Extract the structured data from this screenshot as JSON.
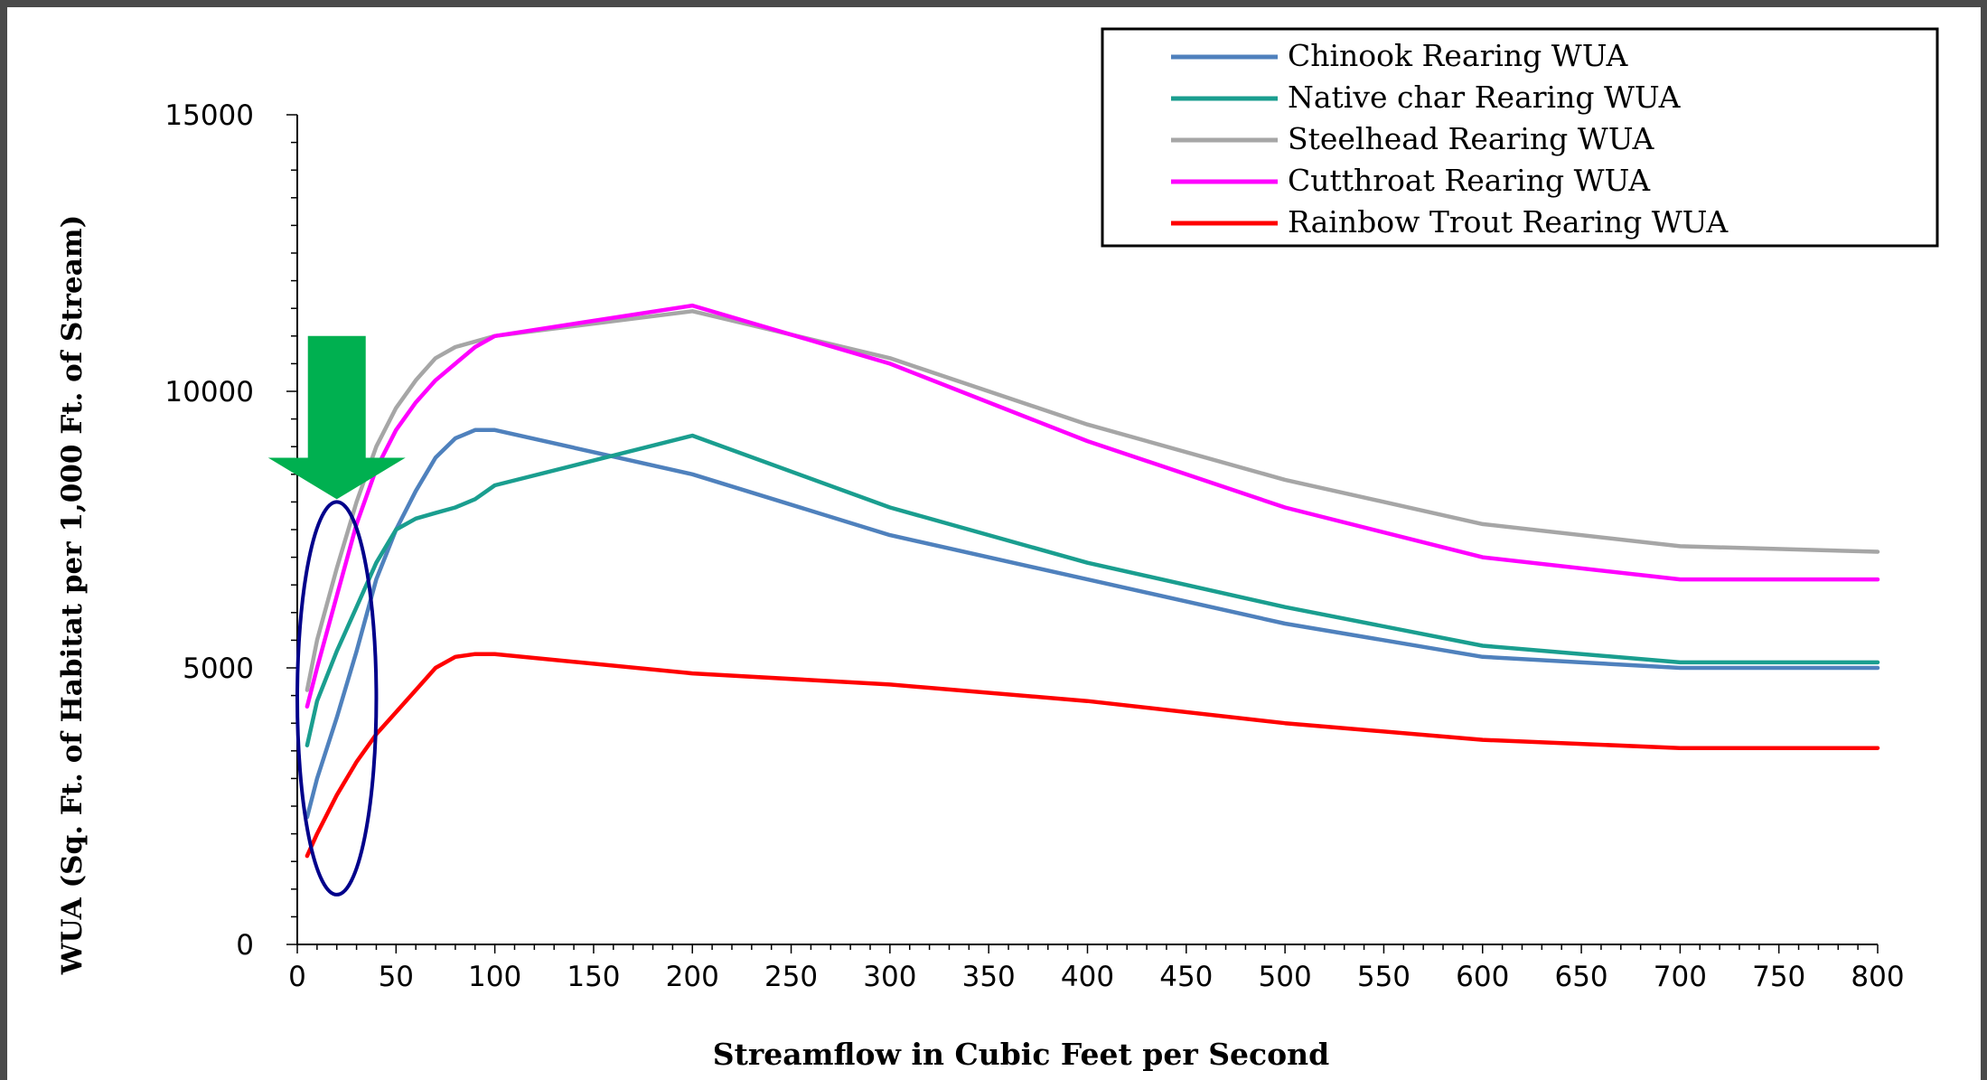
{
  "chart_data": {
    "type": "line",
    "xlabel": "Streamflow in Cubic Feet per Second",
    "ylabel": "WUA (Sq. Ft. of Habitat per 1,000 Ft. of Stream)",
    "xlim": [
      0,
      800
    ],
    "ylim": [
      0,
      15000
    ],
    "x_ticks": [
      0,
      50,
      100,
      150,
      200,
      250,
      300,
      350,
      400,
      450,
      500,
      550,
      600,
      650,
      700,
      750,
      800
    ],
    "y_ticks": [
      0,
      5000,
      10000,
      15000
    ],
    "grid": false,
    "legend_position": "top-right",
    "series": [
      {
        "name": "Chinook Rearing WUA",
        "color": "#4f81bd",
        "x": [
          5,
          10,
          20,
          30,
          40,
          50,
          60,
          70,
          80,
          90,
          100,
          200,
          300,
          400,
          500,
          600,
          700,
          800
        ],
        "y": [
          2300,
          3000,
          4100,
          5300,
          6600,
          7500,
          8200,
          8800,
          9150,
          9300,
          9300,
          8500,
          7400,
          6600,
          5800,
          5200,
          5000,
          5000
        ]
      },
      {
        "name": "Native char Rearing WUA",
        "color": "#1a9e8f",
        "x": [
          5,
          10,
          20,
          30,
          40,
          50,
          60,
          70,
          80,
          90,
          100,
          200,
          300,
          400,
          500,
          600,
          700,
          800
        ],
        "y": [
          3600,
          4400,
          5300,
          6100,
          6900,
          7500,
          7700,
          7800,
          7900,
          8050,
          8300,
          9200,
          7900,
          6900,
          6100,
          5400,
          5100,
          5100
        ]
      },
      {
        "name": "Steelhead Rearing WUA",
        "color": "#a6a6a6",
        "x": [
          5,
          10,
          20,
          30,
          40,
          50,
          60,
          70,
          80,
          90,
          100,
          200,
          300,
          400,
          500,
          600,
          700,
          800
        ],
        "y": [
          4600,
          5500,
          6800,
          8000,
          9000,
          9700,
          10200,
          10600,
          10800,
          10900,
          11000,
          11450,
          10600,
          9400,
          8400,
          7600,
          7200,
          7100
        ]
      },
      {
        "name": "Cutthroat Rearing WUA",
        "color": "#ff00ff",
        "x": [
          5,
          10,
          20,
          30,
          40,
          50,
          60,
          70,
          80,
          90,
          100,
          200,
          300,
          400,
          500,
          600,
          700,
          800
        ],
        "y": [
          4300,
          5000,
          6300,
          7600,
          8600,
          9300,
          9800,
          10200,
          10500,
          10800,
          11000,
          11550,
          10500,
          9100,
          7900,
          7000,
          6600,
          6600
        ]
      },
      {
        "name": "Rainbow Trout Rearing WUA",
        "color": "#ff0000",
        "x": [
          5,
          10,
          20,
          30,
          40,
          50,
          60,
          70,
          80,
          90,
          100,
          200,
          300,
          400,
          500,
          600,
          700,
          800
        ],
        "y": [
          1600,
          2000,
          2700,
          3300,
          3800,
          4200,
          4600,
          5000,
          5200,
          5250,
          5250,
          4900,
          4700,
          4400,
          4000,
          3700,
          3550,
          3550
        ]
      }
    ],
    "annotations": [
      {
        "type": "arrow",
        "color": "#00b050",
        "direction": "down",
        "x": 20
      },
      {
        "type": "ellipse",
        "color": "#00008b",
        "x_range": [
          0,
          40
        ],
        "y_range": [
          900,
          8000
        ]
      }
    ]
  }
}
